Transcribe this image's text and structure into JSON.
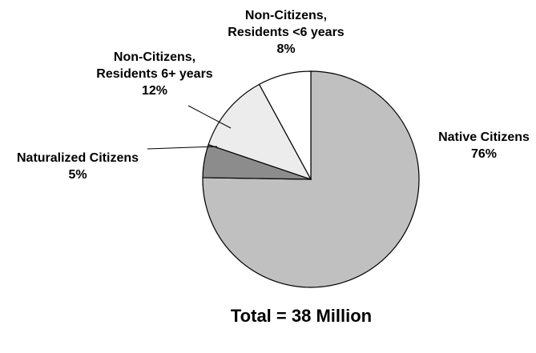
{
  "chart_data": {
    "type": "pie",
    "total_label": "Total = 38 Million",
    "slices": [
      {
        "label_lines": [
          "Native Citizens"
        ],
        "value": 76,
        "value_label": "76%",
        "color": "#c0c0c0"
      },
      {
        "label_lines": [
          "Naturalized Citizens"
        ],
        "value": 5,
        "value_label": "5%",
        "color": "#8c8c8c"
      },
      {
        "label_lines": [
          "Non-Citizens,",
          "Residents 6+ years"
        ],
        "value": 12,
        "value_label": "12%",
        "color": "#ececec"
      },
      {
        "label_lines": [
          "Non-Citizens,",
          "Residents <6 years"
        ],
        "value": 8,
        "value_label": "8%",
        "color": "#ffffff"
      }
    ]
  }
}
